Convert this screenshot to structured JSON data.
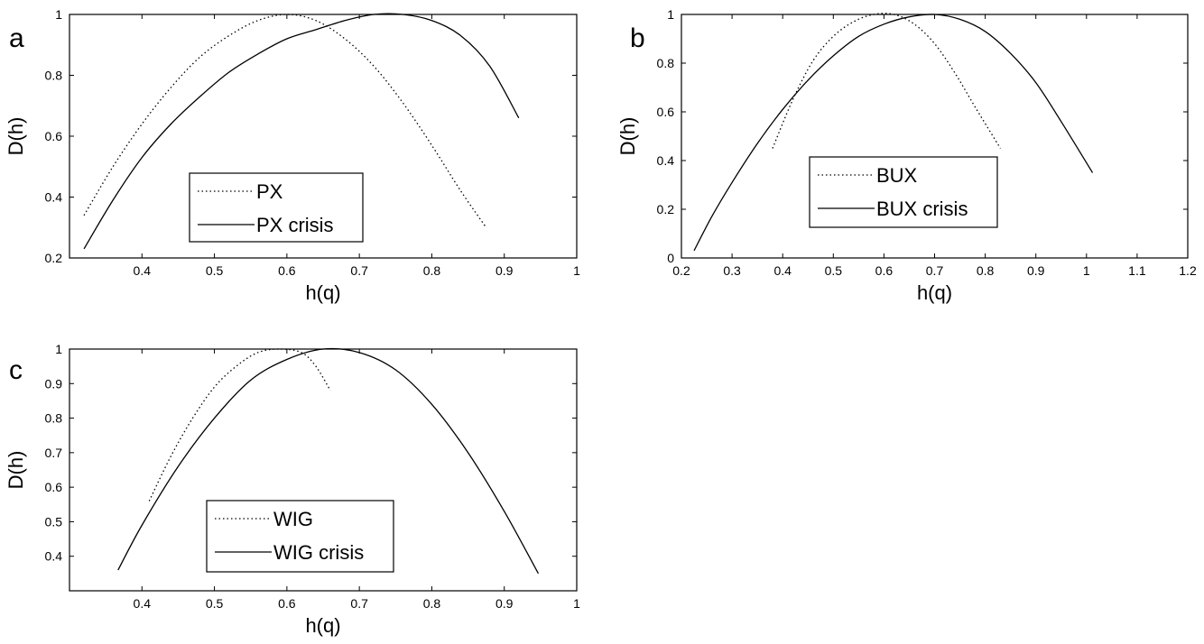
{
  "chart_data": [
    {
      "panel": "a",
      "type": "line",
      "xlabel": "h(q)",
      "ylabel": "D(h)",
      "xlim": [
        0.3,
        1.0
      ],
      "ylim": [
        0.2,
        1.0
      ],
      "xticks": [
        0.4,
        0.5,
        0.6,
        0.7,
        0.8,
        0.9,
        1
      ],
      "yticks": [
        0.2,
        0.4,
        0.6,
        0.8,
        1
      ],
      "legend": "bottom-center",
      "grid": false,
      "series": [
        {
          "name": "PX",
          "style": "dotted",
          "x": [
            0.32,
            0.36,
            0.4,
            0.44,
            0.48,
            0.52,
            0.56,
            0.6,
            0.64,
            0.68,
            0.72,
            0.76,
            0.8,
            0.84,
            0.875
          ],
          "y": [
            0.34,
            0.5,
            0.64,
            0.76,
            0.86,
            0.93,
            0.98,
            1.0,
            0.98,
            0.92,
            0.83,
            0.71,
            0.57,
            0.42,
            0.3
          ]
        },
        {
          "name": "PX crisis",
          "style": "solid",
          "x": [
            0.32,
            0.36,
            0.4,
            0.44,
            0.48,
            0.52,
            0.56,
            0.6,
            0.64,
            0.68,
            0.72,
            0.76,
            0.8,
            0.84,
            0.88,
            0.92
          ],
          "y": [
            0.23,
            0.39,
            0.53,
            0.64,
            0.73,
            0.81,
            0.87,
            0.92,
            0.95,
            0.98,
            1.0,
            1.0,
            0.98,
            0.93,
            0.83,
            0.66
          ]
        }
      ]
    },
    {
      "panel": "b",
      "type": "line",
      "xlabel": "h(q)",
      "ylabel": "D(h)",
      "xlim": [
        0.2,
        1.2
      ],
      "ylim": [
        0,
        1
      ],
      "xticks": [
        0.2,
        0.3,
        0.4,
        0.5,
        0.6,
        0.7,
        0.8,
        0.9,
        1,
        1.1,
        1.2
      ],
      "yticks": [
        0,
        0.2,
        0.4,
        0.6,
        0.8,
        1
      ],
      "legend": "bottom-right",
      "grid": false,
      "series": [
        {
          "name": "BUX",
          "style": "dotted",
          "x": [
            0.38,
            0.42,
            0.46,
            0.5,
            0.54,
            0.58,
            0.62,
            0.66,
            0.7,
            0.74,
            0.78,
            0.83
          ],
          "y": [
            0.45,
            0.65,
            0.81,
            0.91,
            0.97,
            1.0,
            1.0,
            0.96,
            0.88,
            0.76,
            0.62,
            0.45
          ]
        },
        {
          "name": "BUX crisis",
          "style": "solid",
          "x": [
            0.225,
            0.26,
            0.3,
            0.35,
            0.4,
            0.45,
            0.5,
            0.55,
            0.6,
            0.65,
            0.7,
            0.75,
            0.8,
            0.85,
            0.9,
            0.95,
            1.012
          ],
          "y": [
            0.03,
            0.17,
            0.31,
            0.47,
            0.61,
            0.73,
            0.83,
            0.91,
            0.96,
            0.99,
            1.0,
            0.98,
            0.93,
            0.84,
            0.72,
            0.56,
            0.35
          ]
        }
      ]
    },
    {
      "panel": "c",
      "type": "line",
      "xlabel": "h(q)",
      "ylabel": "D(h)",
      "xlim": [
        0.3,
        1.0
      ],
      "ylim": [
        0.3,
        1.0
      ],
      "xticks": [
        0.4,
        0.5,
        0.6,
        0.7,
        0.8,
        0.9,
        1
      ],
      "yticks": [
        0.4,
        0.5,
        0.6,
        0.7,
        0.8,
        0.9,
        1
      ],
      "legend": "bottom-center",
      "grid": false,
      "series": [
        {
          "name": "WIG",
          "style": "dotted",
          "x": [
            0.41,
            0.44,
            0.47,
            0.5,
            0.53,
            0.56,
            0.59,
            0.62,
            0.64,
            0.66
          ],
          "y": [
            0.56,
            0.69,
            0.8,
            0.89,
            0.95,
            0.99,
            1.0,
            0.99,
            0.95,
            0.88
          ]
        },
        {
          "name": "WIG crisis",
          "style": "solid",
          "x": [
            0.367,
            0.4,
            0.45,
            0.5,
            0.55,
            0.6,
            0.65,
            0.7,
            0.75,
            0.8,
            0.85,
            0.9,
            0.947
          ],
          "y": [
            0.36,
            0.49,
            0.66,
            0.8,
            0.91,
            0.97,
            1.0,
            0.99,
            0.94,
            0.84,
            0.7,
            0.53,
            0.35
          ]
        }
      ]
    }
  ]
}
